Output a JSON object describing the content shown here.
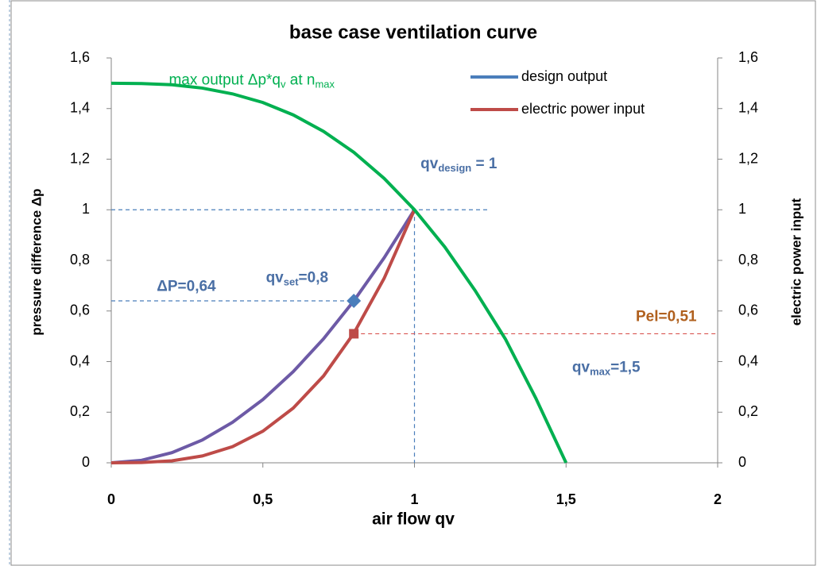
{
  "chart_data": {
    "type": "line",
    "title": "base case ventilation curve",
    "x_label": "air flow  qv",
    "y_label": "pressure difference Δp",
    "y2_label": "electric power input",
    "xlim": [
      0,
      2
    ],
    "xticks": [
      0,
      {
        "value": 0.5,
        "label": "0,5"
      },
      1,
      {
        "value": 1.5,
        "label": "1,5"
      },
      2
    ],
    "ylim": [
      0,
      1.6
    ],
    "yticks": [
      0,
      {
        "value": 0.2,
        "label": "0,2"
      },
      {
        "value": 0.4,
        "label": "0,4"
      },
      {
        "value": 0.6,
        "label": "0,6"
      },
      {
        "value": 0.8,
        "label": "0,8"
      },
      1,
      {
        "value": 1.2,
        "label": "1,2"
      },
      {
        "value": 1.4,
        "label": "1,4"
      },
      {
        "value": 1.6,
        "label": "1,6"
      }
    ],
    "y2lim": [
      0,
      1.6
    ],
    "y2ticks": [
      0,
      {
        "value": 0.2,
        "label": "0,2"
      },
      {
        "value": 0.4,
        "label": "0,4"
      },
      {
        "value": 0.6,
        "label": "0,6"
      },
      {
        "value": 0.8,
        "label": "0,8"
      },
      1,
      {
        "value": 1.2,
        "label": "1,2"
      },
      {
        "value": 1.4,
        "label": "1,4"
      },
      {
        "value": 1.6,
        "label": "1,6"
      }
    ],
    "legend": "top-right",
    "series": [
      {
        "name": "design output",
        "color": "#4a7ebb",
        "curve_color": "#6d5aa6",
        "marker": "diamond",
        "x": [
          0,
          0.1,
          0.2,
          0.3,
          0.4,
          0.5,
          0.6,
          0.7,
          0.8,
          0.9,
          1
        ],
        "values": [
          0,
          0.01,
          0.04,
          0.09,
          0.16,
          0.25,
          0.36,
          0.49,
          0.64,
          0.81,
          1
        ],
        "marker_x": 0.8,
        "marker_y": 0.64
      },
      {
        "name": "electric power input",
        "color": "#be4b48",
        "curve_color": "#be4b48",
        "marker": "square",
        "axis": "y2",
        "x": [
          0,
          0.1,
          0.2,
          0.3,
          0.4,
          0.5,
          0.6,
          0.7,
          0.8,
          0.9,
          1
        ],
        "values": [
          0,
          0.001,
          0.008,
          0.027,
          0.064,
          0.125,
          0.216,
          0.343,
          0.512,
          0.729,
          1
        ],
        "marker_x": 0.8,
        "marker_y": 0.51
      },
      {
        "color": "#00b050",
        "curve_color": "#00b050",
        "x": [
          0,
          0.1,
          0.2,
          0.3,
          0.4,
          0.5,
          0.6,
          0.7,
          0.8,
          0.9,
          1,
          1.1,
          1.2,
          1.3,
          1.4,
          1.5
        ],
        "values": [
          1.5,
          1.499,
          1.494,
          1.481,
          1.458,
          1.424,
          1.375,
          1.31,
          1.227,
          1.124,
          1,
          0.853,
          0.681,
          0.489,
          0.256,
          0
        ]
      }
    ],
    "guides": [
      {
        "x": [
          0,
          1.25
        ],
        "y": [
          1,
          1
        ],
        "color": "#4a7ebb"
      },
      {
        "x": [
          1,
          1
        ],
        "y": [
          1,
          0
        ],
        "color": "#4a7ebb"
      },
      {
        "x": [
          0,
          0.8
        ],
        "y": [
          0.64,
          0.64
        ],
        "color": "#4a7ebb"
      },
      {
        "x": [
          0.8,
          2
        ],
        "y": [
          0.51,
          0.51
        ],
        "color": "#d9534f"
      }
    ],
    "annotations": [
      {
        "color": "#00b050",
        "bold": false,
        "x": 0.19,
        "y": 1.51,
        "parts": [
          {
            "text": "max output  Δp*q"
          },
          {
            "text": "v",
            "sub": true
          },
          {
            "text": " at n"
          },
          {
            "text": "max",
            "sub": true
          }
        ]
      },
      {
        "color": "#4a6fa5",
        "bold": true,
        "x": 1.02,
        "y": 1.18,
        "parts": [
          {
            "text": "qv"
          },
          {
            "text": "design",
            "sub": true
          },
          {
            "text": " = 1"
          }
        ]
      },
      {
        "color": "#4a6fa5",
        "bold": true,
        "x": 0.15,
        "y": 0.695,
        "parts": [
          {
            "text": "ΔP=0,64"
          }
        ]
      },
      {
        "color": "#4a6fa5",
        "bold": true,
        "x": 0.51,
        "y": 0.73,
        "parts": [
          {
            "text": "qv"
          },
          {
            "text": "set",
            "sub": true
          },
          {
            "text": "=0,8"
          }
        ]
      },
      {
        "color": "#b0601e",
        "bold": true,
        "x": 1.73,
        "y": 0.575,
        "parts": [
          {
            "text": "Pel=0,51"
          }
        ]
      },
      {
        "color": "#4a6fa5",
        "bold": true,
        "x": 1.52,
        "y": 0.375,
        "parts": [
          {
            "text": "qv"
          },
          {
            "text": "max",
            "sub": true
          },
          {
            "text": "=1,5"
          }
        ]
      }
    ]
  }
}
